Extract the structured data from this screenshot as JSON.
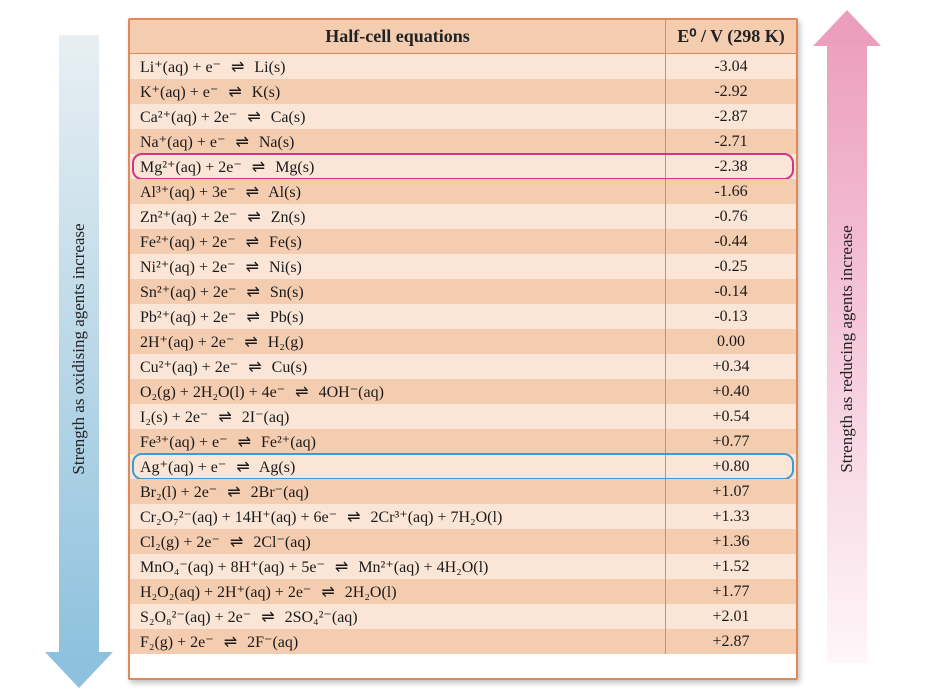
{
  "table": {
    "header_eq": "Half-cell equations",
    "header_val": "E⁰ / V (298 K)",
    "border_color": "#e0895a",
    "inner_border_color": "#d98b5e",
    "row_colors": [
      "#fbe5d6",
      "#f4ccb0"
    ],
    "header_bg": "#f4ccb0",
    "rows": [
      {
        "eq": "Li⁺(aq) + e⁻  ⇌  Li(s)",
        "val": "-3.04"
      },
      {
        "eq": "K⁺(aq) + e⁻  ⇌  K(s)",
        "val": "-2.92"
      },
      {
        "eq": "Ca²⁺(aq) + 2e⁻  ⇌  Ca(s)",
        "val": "-2.87"
      },
      {
        "eq": "Na⁺(aq) + e⁻  ⇌  Na(s)",
        "val": "-2.71"
      },
      {
        "eq": "Mg²⁺(aq) + 2e⁻  ⇌  Mg(s)",
        "val": "-2.38",
        "highlight": "pink"
      },
      {
        "eq": "Al³⁺(aq) + 3e⁻  ⇌  Al(s)",
        "val": "-1.66"
      },
      {
        "eq": "Zn²⁺(aq) + 2e⁻  ⇌  Zn(s)",
        "val": "-0.76"
      },
      {
        "eq": "Fe²⁺(aq) + 2e⁻  ⇌  Fe(s)",
        "val": "-0.44"
      },
      {
        "eq": "Ni²⁺(aq) + 2e⁻  ⇌  Ni(s)",
        "val": "-0.25"
      },
      {
        "eq": "Sn²⁺(aq) + 2e⁻  ⇌  Sn(s)",
        "val": "-0.14"
      },
      {
        "eq": "Pb²⁺(aq) + 2e⁻  ⇌  Pb(s)",
        "val": "-0.13"
      },
      {
        "eq": "2H⁺(aq) + 2e⁻  ⇌  H₂(g)",
        "val": "0.00"
      },
      {
        "eq": "Cu²⁺(aq) + 2e⁻  ⇌  Cu(s)",
        "val": "+0.34"
      },
      {
        "eq": "O₂(g) + 2H₂O(l) + 4e⁻  ⇌  4OH⁻(aq)",
        "val": "+0.40"
      },
      {
        "eq": "I₂(s) + 2e⁻  ⇌  2I⁻(aq)",
        "val": "+0.54"
      },
      {
        "eq": "Fe³⁺(aq) + e⁻  ⇌  Fe²⁺(aq)",
        "val": "+0.77"
      },
      {
        "eq": "Ag⁺(aq) + e⁻  ⇌  Ag(s)",
        "val": "+0.80",
        "highlight": "blue"
      },
      {
        "eq": "Br₂(l) + 2e⁻  ⇌  2Br⁻(aq)",
        "val": "+1.07"
      },
      {
        "eq": "Cr₂O₇²⁻(aq) + 14H⁺(aq) + 6e⁻  ⇌  2Cr³⁺(aq) + 7H₂O(l)",
        "val": "+1.33"
      },
      {
        "eq": "Cl₂(g) + 2e⁻  ⇌  2Cl⁻(aq)",
        "val": "+1.36"
      },
      {
        "eq": "MnO₄⁻(aq) + 8H⁺(aq) + 5e⁻  ⇌  Mn²⁺(aq) + 4H₂O(l)",
        "val": "+1.52"
      },
      {
        "eq": "H₂O₂(aq) + 2H⁺(aq) + 2e⁻  ⇌  2H₂O(l)",
        "val": "+1.77"
      },
      {
        "eq": "S₂O₈²⁻(aq) + 2e⁻  ⇌  2SO₄²⁻(aq)",
        "val": "+2.01"
      },
      {
        "eq": "F₂(g) + 2e⁻  ⇌  2F⁻(aq)",
        "val": "+2.87"
      }
    ],
    "highlight_colors": {
      "pink": "#d63384",
      "blue": "#3b9bd4"
    },
    "font_size": 16
  },
  "left_arrow": {
    "label": "Strength as oxidising agents increase",
    "gradient_top": "#e8eff3",
    "gradient_bottom": "#8ec1dd",
    "direction": "down"
  },
  "right_arrow": {
    "label": "Strength as reducing agents increase",
    "gradient_top": "#ec9fbc",
    "gradient_bottom": "#fef6f9",
    "direction": "up"
  }
}
